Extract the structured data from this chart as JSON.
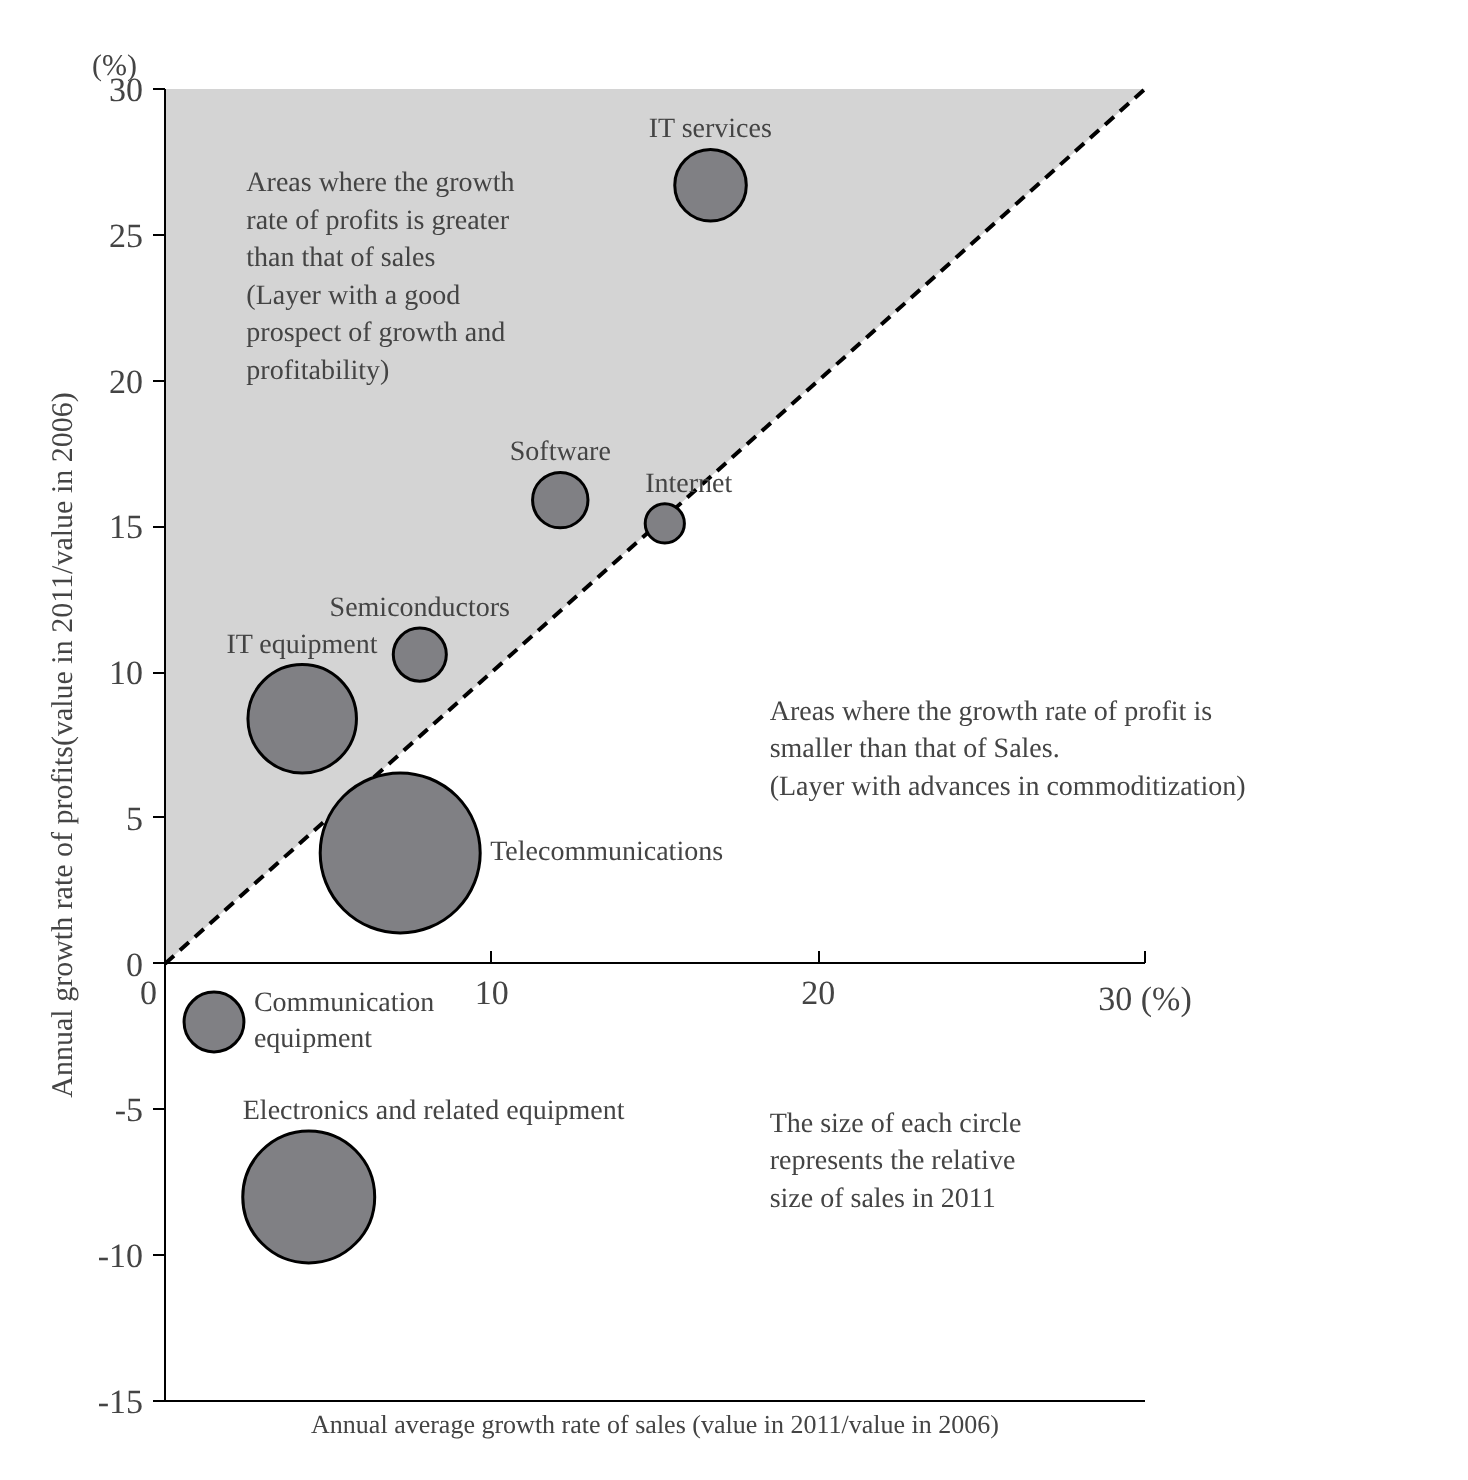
{
  "chart_data": {
    "type": "bubble",
    "xlabel": "Annual average growth rate of sales (value in 2011/value in 2006)",
    "ylabel": "Annual growth rate of profits(value in 2011/value in 2006)",
    "xlim": [
      0,
      30
    ],
    "ylim": [
      -15,
      30
    ],
    "xticks": [
      0,
      10,
      20,
      {
        "value": 30,
        "label": "30 (%)"
      }
    ],
    "yticks": [
      -15,
      -10,
      -5,
      0,
      5,
      10,
      15,
      20,
      25,
      30
    ],
    "grid": false,
    "series": [
      {
        "type": "line",
        "color": "#000000",
        "line_style": "dashed",
        "x": [
          0,
          30
        ],
        "values": [
          0,
          30
        ],
        "lower": [
          0,
          30
        ],
        "upper": [
          30,
          30
        ]
      },
      {
        "name": "IT services",
        "color": "#808084",
        "x": [
          16.7
        ],
        "values": [
          26.7
        ],
        "sizes": [
          0.2
        ]
      },
      {
        "name": "Software",
        "color": "#808084",
        "x": [
          12.1
        ],
        "values": [
          15.9
        ],
        "sizes": [
          0.12
        ]
      },
      {
        "name": "Internet",
        "color": "#808084",
        "x": [
          15.3
        ],
        "values": [
          15.1
        ],
        "sizes": [
          0.06
        ]
      },
      {
        "name": "Semiconductors",
        "color": "#808084",
        "x": [
          7.8
        ],
        "values": [
          10.6
        ],
        "sizes": [
          0.11
        ]
      },
      {
        "name": "IT equipment",
        "color": "#808084",
        "x": [
          4.2
        ],
        "values": [
          8.4
        ],
        "sizes": [
          0.46
        ]
      },
      {
        "name": "Telecommunications",
        "color": "#808084",
        "x": [
          7.2
        ],
        "values": [
          3.8
        ],
        "sizes": [
          1
        ]
      },
      {
        "name": "Communication\nequipment",
        "color": "#808084",
        "x": [
          1.5
        ],
        "values": [
          -2
        ],
        "sizes": [
          0.14
        ]
      },
      {
        "name": "Electronics and related equipment",
        "color": "#808084",
        "x": [
          4.4
        ],
        "values": [
          -8
        ],
        "sizes": [
          0.68
        ]
      }
    ],
    "annotations": [
      "(%)",
      "Areas where the growth\nrate of profits is greater\nthan that of sales\n(Layer with a good\nprospect of growth and\nprofitability)",
      "Areas where the growth rate of profit is\nsmaller than that of Sales.\n(Layer with advances in commoditization)",
      "The size of each circle\nrepresents the relative\nsize of sales in 2011"
    ]
  }
}
